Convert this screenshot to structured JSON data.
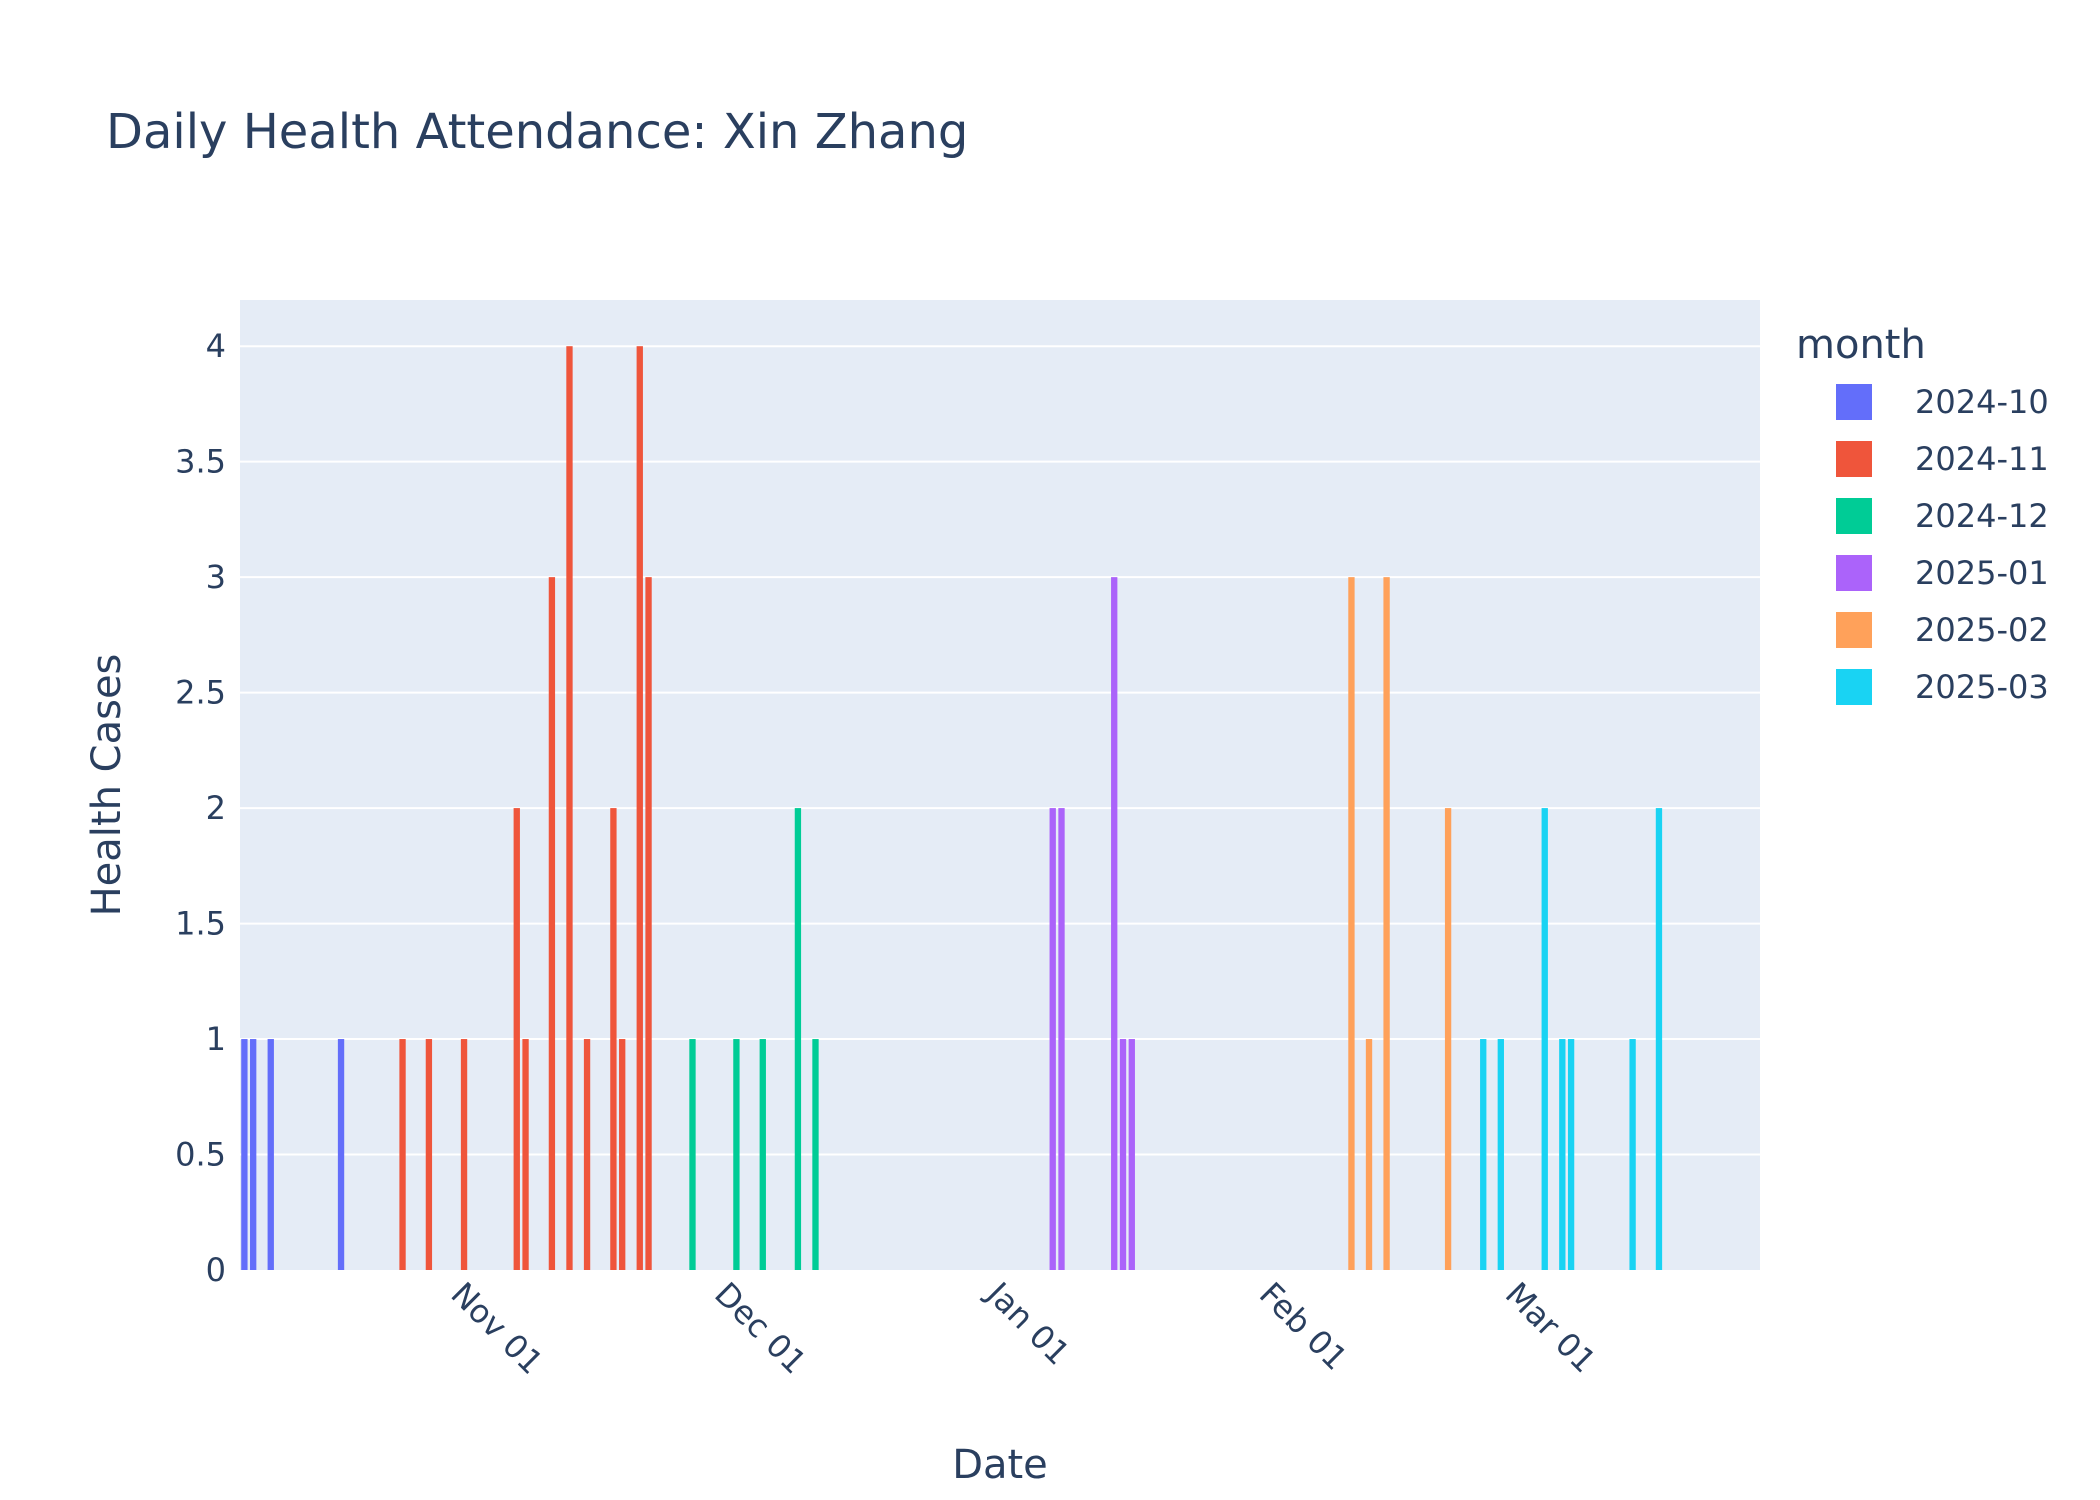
{
  "chart_data": {
    "type": "bar",
    "title": "Daily Health Attendance: Xin Zhang",
    "xlabel": "Date",
    "ylabel": "Health Cases",
    "xlim": [
      "2024-10-08",
      "2025-03-29"
    ],
    "ylim": [
      0,
      4.2
    ],
    "x_ticks": [
      {
        "date": "2024-11-01",
        "label": "Nov 01"
      },
      {
        "date": "2024-12-01",
        "label": "Dec 01"
      },
      {
        "date": "2025-01-01",
        "label": "Jan 01"
      },
      {
        "date": "2025-02-01",
        "label": "Feb 01"
      },
      {
        "date": "2025-03-01",
        "label": "Mar 01"
      }
    ],
    "y_ticks": [
      0,
      0.5,
      1,
      1.5,
      2,
      2.5,
      3,
      3.5,
      4
    ],
    "y_tick_labels": [
      "0",
      "0.5",
      "1",
      "1.5",
      "2",
      "2.5",
      "3",
      "3.5",
      "4"
    ],
    "grid": true,
    "legend": {
      "title": "month",
      "position": "right"
    },
    "series": [
      {
        "name": "2024-10",
        "color": "#636efa",
        "points": [
          {
            "x": "2024-10-08",
            "y": 1
          },
          {
            "x": "2024-10-09",
            "y": 1
          },
          {
            "x": "2024-10-11",
            "y": 1
          },
          {
            "x": "2024-10-19",
            "y": 1
          }
        ]
      },
      {
        "name": "2024-11",
        "color": "#EF553B",
        "points": [
          {
            "x": "2024-10-26",
            "y": 1
          },
          {
            "x": "2024-10-29",
            "y": 1
          },
          {
            "x": "2024-11-02",
            "y": 1
          },
          {
            "x": "2024-11-08",
            "y": 2
          },
          {
            "x": "2024-11-09",
            "y": 1
          },
          {
            "x": "2024-11-12",
            "y": 3
          },
          {
            "x": "2024-11-14",
            "y": 4
          },
          {
            "x": "2024-11-16",
            "y": 1
          },
          {
            "x": "2024-11-19",
            "y": 2
          },
          {
            "x": "2024-11-20",
            "y": 1
          },
          {
            "x": "2024-11-22",
            "y": 4
          },
          {
            "x": "2024-11-23",
            "y": 3
          }
        ]
      },
      {
        "name": "2024-12",
        "color": "#00cc96",
        "points": [
          {
            "x": "2024-11-28",
            "y": 1
          },
          {
            "x": "2024-12-03",
            "y": 1
          },
          {
            "x": "2024-12-06",
            "y": 1
          },
          {
            "x": "2024-12-10",
            "y": 2
          },
          {
            "x": "2024-12-12",
            "y": 1
          }
        ]
      },
      {
        "name": "2025-01",
        "color": "#ab63fa",
        "points": [
          {
            "x": "2025-01-08",
            "y": 2
          },
          {
            "x": "2025-01-09",
            "y": 2
          },
          {
            "x": "2025-01-15",
            "y": 3
          },
          {
            "x": "2025-01-16",
            "y": 1
          },
          {
            "x": "2025-01-17",
            "y": 1
          }
        ]
      },
      {
        "name": "2025-02",
        "color": "#FFA15A",
        "points": [
          {
            "x": "2025-02-11",
            "y": 3
          },
          {
            "x": "2025-02-13",
            "y": 1
          },
          {
            "x": "2025-02-15",
            "y": 3
          },
          {
            "x": "2025-02-22",
            "y": 2
          }
        ]
      },
      {
        "name": "2025-03",
        "color": "#19d3f3",
        "points": [
          {
            "x": "2025-02-26",
            "y": 1
          },
          {
            "x": "2025-02-28",
            "y": 1
          },
          {
            "x": "2025-03-05",
            "y": 2
          },
          {
            "x": "2025-03-07",
            "y": 1
          },
          {
            "x": "2025-03-08",
            "y": 1
          },
          {
            "x": "2025-03-15",
            "y": 1
          },
          {
            "x": "2025-03-18",
            "y": 2
          }
        ]
      }
    ]
  }
}
